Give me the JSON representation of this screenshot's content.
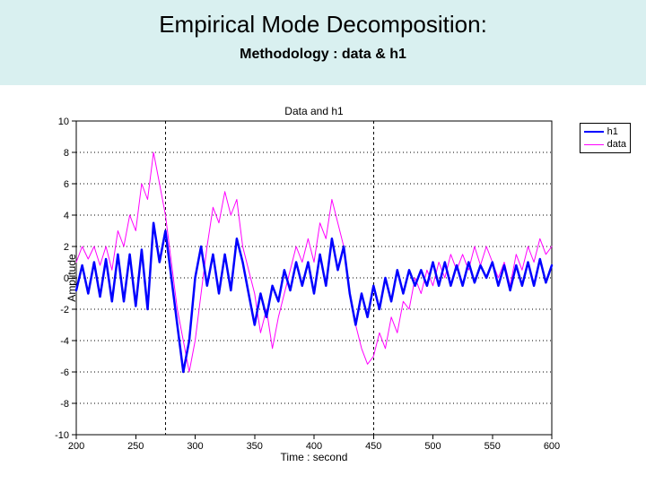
{
  "slide": {
    "title": "Empirical Mode Decomposition:",
    "subtitle": "Methodology : data & h1",
    "header_background": "#d9f0f0"
  },
  "chart": {
    "type": "line",
    "title": "Data and h1",
    "xlabel": "Time : second",
    "ylabel": "Amplitude",
    "xlim": [
      200,
      600
    ],
    "ylim": [
      -10,
      10
    ],
    "xtick_step": 50,
    "ytick_step": 2,
    "x_grid_major": [
      275,
      450
    ],
    "background_color": "#ffffff",
    "axis_color": "#000000",
    "grid_color": "#000000",
    "grid_dash_major": "3 3",
    "grid_dash_minor": "1 3",
    "title_fontsize": 12,
    "label_fontsize": 12,
    "tick_fontsize": 11,
    "legend": {
      "position": "outside-right-top",
      "items": [
        {
          "label": "h1",
          "color": "#0000ff",
          "width": 2.5
        },
        {
          "label": "data",
          "color": "#ff00ff",
          "width": 1
        }
      ]
    },
    "series": [
      {
        "name": "data",
        "color": "#ff00ff",
        "line_width": 1,
        "x": [
          200,
          205,
          210,
          215,
          220,
          225,
          230,
          235,
          240,
          245,
          250,
          255,
          260,
          265,
          270,
          275,
          280,
          285,
          290,
          295,
          300,
          305,
          310,
          315,
          320,
          325,
          330,
          335,
          340,
          345,
          350,
          355,
          360,
          365,
          370,
          375,
          380,
          385,
          390,
          395,
          400,
          405,
          410,
          415,
          420,
          425,
          430,
          435,
          440,
          445,
          450,
          455,
          460,
          465,
          470,
          475,
          480,
          485,
          490,
          495,
          500,
          505,
          510,
          515,
          520,
          525,
          530,
          535,
          540,
          545,
          550,
          555,
          560,
          565,
          570,
          575,
          580,
          585,
          590,
          595,
          600
        ],
        "y": [
          1.0,
          2.0,
          1.2,
          2.0,
          0.8,
          2.0,
          0.5,
          3.0,
          2.0,
          4.0,
          3.0,
          6.0,
          5.0,
          8.0,
          6.0,
          4.0,
          1.0,
          -2.0,
          -4.0,
          -6.0,
          -4.0,
          -1.0,
          2.0,
          4.5,
          3.5,
          5.5,
          4.0,
          5.0,
          2.0,
          0.5,
          -1.0,
          -3.5,
          -2.0,
          -4.5,
          -2.5,
          -1.0,
          0.5,
          2.0,
          1.0,
          2.5,
          1.0,
          3.5,
          2.5,
          5.0,
          3.5,
          2.0,
          -1.0,
          -3.0,
          -4.5,
          -5.5,
          -5.0,
          -3.5,
          -4.5,
          -2.5,
          -3.5,
          -1.5,
          -2.0,
          0.0,
          -1.0,
          0.5,
          -0.5,
          1.0,
          0.0,
          1.5,
          0.5,
          1.5,
          0.5,
          2.0,
          0.8,
          2.0,
          1.0,
          0.0,
          1.0,
          -0.5,
          1.5,
          0.5,
          2.0,
          1.0,
          2.5,
          1.5,
          2.0
        ]
      },
      {
        "name": "h1",
        "color": "#0000ff",
        "line_width": 2.5,
        "x": [
          200,
          205,
          210,
          215,
          220,
          225,
          230,
          235,
          240,
          245,
          250,
          255,
          260,
          265,
          270,
          275,
          280,
          285,
          290,
          295,
          300,
          305,
          310,
          315,
          320,
          325,
          330,
          335,
          340,
          345,
          350,
          355,
          360,
          365,
          370,
          375,
          380,
          385,
          390,
          395,
          400,
          405,
          410,
          415,
          420,
          425,
          430,
          435,
          440,
          445,
          450,
          455,
          460,
          465,
          470,
          475,
          480,
          485,
          490,
          495,
          500,
          505,
          510,
          515,
          520,
          525,
          530,
          535,
          540,
          545,
          550,
          555,
          560,
          565,
          570,
          575,
          580,
          585,
          590,
          595,
          600
        ],
        "y": [
          -0.8,
          0.8,
          -1.0,
          1.0,
          -1.2,
          1.2,
          -1.5,
          1.5,
          -1.5,
          1.5,
          -1.8,
          1.8,
          -2.0,
          3.5,
          1.0,
          3.0,
          0.0,
          -3.0,
          -6.0,
          -4.0,
          0.0,
          2.0,
          -0.5,
          1.5,
          -1.0,
          1.5,
          -0.8,
          2.5,
          1.0,
          -1.0,
          -3.0,
          -1.0,
          -2.5,
          -0.5,
          -1.5,
          0.5,
          -0.8,
          1.0,
          -0.5,
          1.0,
          -1.0,
          1.5,
          -0.5,
          2.5,
          0.5,
          2.0,
          -1.0,
          -3.0,
          -1.0,
          -2.5,
          -0.5,
          -2.0,
          0.0,
          -1.5,
          0.5,
          -1.0,
          0.5,
          -0.5,
          0.5,
          -0.5,
          1.0,
          -0.5,
          1.0,
          -0.5,
          0.8,
          -0.5,
          1.0,
          -0.3,
          0.8,
          0.0,
          1.0,
          -0.5,
          0.8,
          -0.8,
          0.8,
          -0.5,
          1.0,
          -0.5,
          1.2,
          -0.3,
          0.8
        ]
      }
    ]
  }
}
